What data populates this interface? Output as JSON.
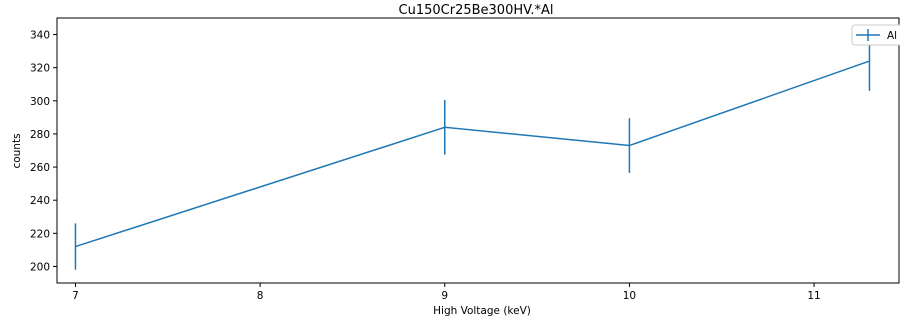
{
  "chart_data": {
    "type": "line",
    "title": "Cu150Cr25Be300HV.*Al",
    "xlabel": "High Voltage (keV)",
    "ylabel": "counts",
    "xlim": [
      6.9,
      11.46
    ],
    "ylim": [
      190,
      350
    ],
    "xticks": [
      7,
      8,
      9,
      10,
      11
    ],
    "yticks": [
      200,
      220,
      240,
      260,
      280,
      300,
      320,
      340
    ],
    "grid": false,
    "legend_position": "top-right",
    "series": [
      {
        "name": "Al",
        "color": "#1f77b4",
        "x": [
          7,
          9,
          10,
          11.3
        ],
        "y": [
          212,
          284,
          273,
          324
        ],
        "yerr": [
          14,
          16.5,
          16.5,
          18
        ]
      }
    ]
  }
}
